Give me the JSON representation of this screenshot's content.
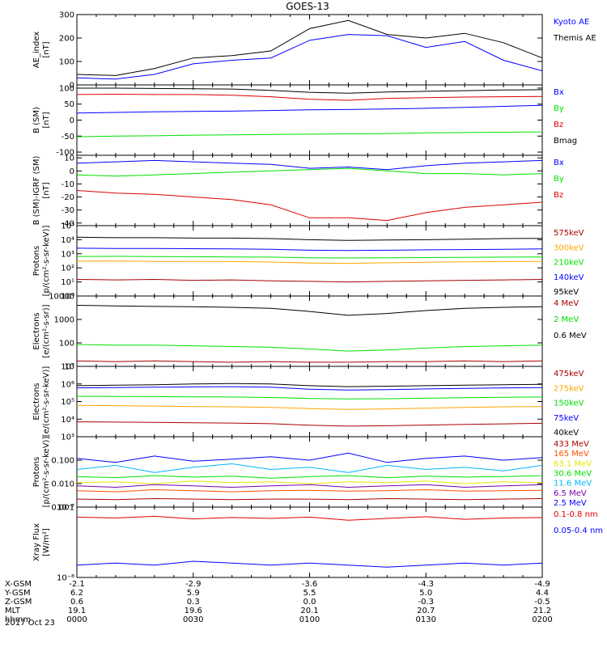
{
  "title": "GOES-13",
  "date_label": "2017 Oct 23",
  "orbit_table": {
    "row_labels": [
      "X-GSM",
      "Y-GSM",
      "Z-GSM",
      "MLT",
      "hhmm"
    ],
    "columns": [
      [
        "-2.1",
        "6.2",
        "0.6",
        "19.1",
        "0000"
      ],
      [
        "-2.9",
        "5.9",
        "0.3",
        "19.6",
        "0030"
      ],
      [
        "-3.6",
        "5.5",
        "0.0",
        "20.1",
        "0100"
      ],
      [
        "-4.3",
        "5.0",
        "-0.3",
        "20.7",
        "0130"
      ],
      [
        "-4.9",
        "4.4",
        "-0.5",
        "21.2",
        "0200"
      ]
    ]
  },
  "colors": {
    "black": "#000000",
    "blue": "#0000ff",
    "green": "#00e000",
    "red": "#dd0000",
    "darkred": "#aa0000",
    "orange": "#ffa500",
    "cyan": "#00b4ff",
    "yellow": "#e6e600",
    "orange_red": "#ff5000",
    "purple": "#7700aa"
  },
  "chart_data": [
    {
      "type": "line",
      "ylabel": "AE_index\n[nT]",
      "yscale": "linear",
      "ylim": [
        0,
        300
      ],
      "yticks": [
        0,
        100,
        200,
        300
      ],
      "ytick_labels": [
        "0",
        "100",
        "200",
        "300"
      ],
      "x": [
        0,
        10,
        20,
        30,
        40,
        50,
        60,
        70,
        80,
        90,
        100,
        110,
        120
      ],
      "series": [
        {
          "name": "Kyoto AE",
          "color": "#0000ff",
          "values": [
            30,
            25,
            45,
            90,
            105,
            115,
            190,
            215,
            210,
            160,
            185,
            105,
            60
          ]
        },
        {
          "name": "Themis AE",
          "color": "#000000",
          "values": [
            45,
            40,
            70,
            115,
            125,
            145,
            240,
            275,
            215,
            200,
            220,
            180,
            115
          ]
        }
      ]
    },
    {
      "type": "line",
      "ylabel": "B (SM)\n[nT]",
      "yscale": "linear",
      "ylim": [
        -110,
        110
      ],
      "yticks": [
        -100,
        -50,
        0,
        50,
        100
      ],
      "ytick_labels": [
        "-100",
        "-50",
        "0",
        "50",
        "100"
      ],
      "x": [
        0,
        10,
        20,
        30,
        40,
        50,
        60,
        70,
        80,
        90,
        100,
        110,
        120
      ],
      "series": [
        {
          "name": "Bx",
          "color": "#0000ff",
          "values": [
            22,
            24,
            26,
            27,
            28,
            30,
            32,
            33,
            35,
            37,
            40,
            43,
            46
          ]
        },
        {
          "name": "By",
          "color": "#00e000",
          "values": [
            -52,
            -50,
            -49,
            -47,
            -46,
            -45,
            -44,
            -43,
            -42,
            -40,
            -39,
            -38,
            -37
          ]
        },
        {
          "name": "Bz",
          "color": "#dd0000",
          "values": [
            80,
            81,
            80,
            80,
            78,
            73,
            65,
            62,
            68,
            70,
            72,
            73,
            74
          ]
        },
        {
          "name": "Bmag",
          "color": "#000000",
          "values": [
            100,
            100,
            99,
            98,
            97,
            93,
            87,
            84,
            88,
            90,
            92,
            94,
            95
          ]
        }
      ]
    },
    {
      "type": "line",
      "ylabel": "B (SM)-IGRF (SM)\n[nT]",
      "yscale": "linear",
      "ylim": [
        -42,
        12
      ],
      "yticks": [
        -40,
        -30,
        -20,
        -10,
        0,
        10
      ],
      "ytick_labels": [
        "-40",
        "-30",
        "-20",
        "-10",
        "0",
        "10"
      ],
      "x": [
        0,
        10,
        20,
        30,
        40,
        50,
        60,
        70,
        80,
        90,
        100,
        110,
        120
      ],
      "series": [
        {
          "name": "Bx",
          "color": "#0000ff",
          "values": [
            6,
            7,
            8,
            7,
            6,
            5,
            2,
            3,
            1,
            4,
            6,
            7,
            8
          ]
        },
        {
          "name": "By",
          "color": "#00e000",
          "values": [
            -3,
            -4,
            -3,
            -2,
            -1,
            0,
            1,
            2,
            0,
            -2,
            -2,
            -3,
            -2
          ]
        },
        {
          "name": "Bz",
          "color": "#dd0000",
          "values": [
            -15,
            -17,
            -18,
            -20,
            -22,
            -26,
            -36,
            -36,
            -38,
            -32,
            -28,
            -26,
            -24
          ]
        }
      ]
    },
    {
      "type": "line",
      "ylabel": "Protons\n[p/(cm²-s-sr-keV)]",
      "yscale": "log",
      "ylim": [
        1,
        100000
      ],
      "yticks": [
        1,
        10,
        100,
        1000,
        10000,
        100000
      ],
      "ytick_labels": [
        "10⁰",
        "10¹",
        "10²",
        "10³",
        "10⁴",
        "10⁵"
      ],
      "x": [
        0,
        10,
        20,
        30,
        40,
        50,
        60,
        70,
        80,
        90,
        100,
        110,
        120
      ],
      "series": [
        {
          "name": "575keV",
          "color": "#aa0000",
          "values": [
            15,
            14,
            15,
            13,
            14,
            12,
            11,
            10,
            11,
            12,
            13,
            14,
            15
          ]
        },
        {
          "name": "300keV",
          "color": "#ffa500",
          "values": [
            300,
            310,
            290,
            290,
            280,
            260,
            220,
            210,
            230,
            250,
            270,
            280,
            290
          ]
        },
        {
          "name": "210keV",
          "color": "#00e000",
          "values": [
            650,
            660,
            630,
            620,
            600,
            580,
            520,
            500,
            520,
            540,
            560,
            580,
            600
          ]
        },
        {
          "name": "140keV",
          "color": "#0000ff",
          "values": [
            2500,
            2400,
            2400,
            2300,
            2200,
            2100,
            1800,
            1700,
            1800,
            1900,
            2000,
            2100,
            2200
          ]
        },
        {
          "name": "95keV",
          "color": "#000000",
          "values": [
            15000,
            14000,
            14000,
            13000,
            13000,
            12000,
            10000,
            9000,
            9500,
            10000,
            11000,
            12000,
            12500
          ]
        }
      ]
    },
    {
      "type": "line",
      "ylabel": "Electrons\n[e/(cm²-s-sr)]",
      "yscale": "log",
      "ylim": [
        10,
        10000
      ],
      "yticks": [
        10,
        100,
        1000,
        10000
      ],
      "ytick_labels": [
        "10",
        "100",
        "1000",
        "10000"
      ],
      "x": [
        0,
        10,
        20,
        30,
        40,
        50,
        60,
        70,
        80,
        90,
        100,
        110,
        120
      ],
      "series": [
        {
          "name": "4 MeV",
          "color": "#aa0000",
          "values": [
            17,
            16,
            17,
            16,
            15,
            16,
            15,
            15,
            16,
            16,
            17,
            16,
            17
          ]
        },
        {
          "name": "2 MeV",
          "color": "#00e000",
          "values": [
            85,
            80,
            80,
            75,
            70,
            65,
            55,
            45,
            50,
            60,
            70,
            75,
            80
          ]
        },
        {
          "name": "0.6 MeV",
          "color": "#000000",
          "values": [
            4000,
            3800,
            3600,
            3500,
            3300,
            3000,
            2200,
            1500,
            1800,
            2400,
            3000,
            3300,
            3500
          ]
        }
      ]
    },
    {
      "type": "line",
      "ylabel": "Electrons\n[e/(cm²-s-sr-keV)]",
      "yscale": "log",
      "ylim": [
        1000,
        10000000
      ],
      "yticks": [
        1000,
        10000,
        100000,
        1000000,
        10000000
      ],
      "ytick_labels": [
        "10³",
        "10⁴",
        "10⁵",
        "10⁶",
        "10⁷"
      ],
      "x": [
        0,
        10,
        20,
        30,
        40,
        50,
        60,
        70,
        80,
        90,
        100,
        110,
        120
      ],
      "series": [
        {
          "name": "475keV",
          "color": "#aa0000",
          "values": [
            7000,
            6800,
            6500,
            6200,
            6000,
            5500,
            4500,
            4000,
            4200,
            4600,
            5000,
            5400,
            5800
          ]
        },
        {
          "name": "275keV",
          "color": "#ffa500",
          "values": [
            60000,
            58000,
            55000,
            52000,
            50000,
            46000,
            40000,
            36000,
            38000,
            42000,
            46000,
            50000,
            52000
          ]
        },
        {
          "name": "150keV",
          "color": "#00e000",
          "values": [
            200000,
            195000,
            190000,
            185000,
            180000,
            170000,
            150000,
            140000,
            145000,
            155000,
            165000,
            175000,
            180000
          ]
        },
        {
          "name": "75keV",
          "color": "#0000ff",
          "values": [
            600000,
            620000,
            650000,
            680000,
            700000,
            650000,
            500000,
            450000,
            480000,
            520000,
            560000,
            600000,
            620000
          ]
        },
        {
          "name": "40keV",
          "color": "#000000",
          "values": [
            800000,
            850000,
            900000,
            1000000,
            1050000,
            1000000,
            800000,
            700000,
            750000,
            800000,
            850000,
            900000,
            950000
          ]
        }
      ]
    },
    {
      "type": "line",
      "ylabel": "Protons\n[p/(cm²-s-sr-keV)]",
      "yscale": "log",
      "ylim": [
        0.001,
        1
      ],
      "yticks": [
        0.001,
        0.01,
        0.1
      ],
      "ytick_labels": [
        "0.001",
        "0.010",
        "0.100"
      ],
      "x": [
        0,
        10,
        20,
        30,
        40,
        50,
        60,
        70,
        80,
        90,
        100,
        110,
        120
      ],
      "series": [
        {
          "name": "433 MeV",
          "color": "#aa0000",
          "values": [
            0.0022,
            0.0021,
            0.0023,
            0.0022,
            0.0021,
            0.0022,
            0.0022,
            0.0021,
            0.0023,
            0.0022,
            0.0021,
            0.0022,
            0.0023
          ]
        },
        {
          "name": "165 MeV",
          "color": "#ff5000",
          "values": [
            0.005,
            0.0045,
            0.0055,
            0.005,
            0.0045,
            0.005,
            0.0052,
            0.0048,
            0.005,
            0.0055,
            0.0048,
            0.005,
            0.0052
          ]
        },
        {
          "name": "63.1 MeV",
          "color": "#e6e600",
          "values": [
            0.011,
            0.012,
            0.01,
            0.013,
            0.011,
            0.012,
            0.01,
            0.012,
            0.011,
            0.013,
            0.01,
            0.012,
            0.011
          ]
        },
        {
          "name": "30.6 MeV",
          "color": "#00e000",
          "values": [
            0.02,
            0.018,
            0.022,
            0.019,
            0.021,
            0.017,
            0.02,
            0.022,
            0.018,
            0.021,
            0.019,
            0.02,
            0.022
          ]
        },
        {
          "name": "11.6 MeV",
          "color": "#00b4ff",
          "values": [
            0.04,
            0.06,
            0.03,
            0.05,
            0.07,
            0.04,
            0.05,
            0.03,
            0.06,
            0.04,
            0.05,
            0.035,
            0.06
          ]
        },
        {
          "name": "6.5 MeV",
          "color": "#7700aa",
          "values": [
            0.008,
            0.007,
            0.009,
            0.008,
            0.007,
            0.008,
            0.009,
            0.007,
            0.008,
            0.009,
            0.007,
            0.008,
            0.009
          ]
        },
        {
          "name": "2.5 MeV",
          "color": "#0000ff",
          "values": [
            0.12,
            0.08,
            0.15,
            0.09,
            0.11,
            0.14,
            0.1,
            0.2,
            0.08,
            0.12,
            0.15,
            0.1,
            0.13
          ]
        }
      ]
    },
    {
      "type": "line",
      "ylabel": "Xray Flux\n[W/m²]",
      "yscale": "log",
      "ylim": [
        1e-08,
        1e-07
      ],
      "yticks": [
        1e-08,
        1e-07
      ],
      "ytick_labels": [
        "10⁻⁸",
        "10⁻⁷"
      ],
      "x": [
        0,
        10,
        20,
        30,
        40,
        50,
        60,
        70,
        80,
        90,
        100,
        110,
        120
      ],
      "series": [
        {
          "name": "0.1-0.8 nm",
          "color": "#dd0000",
          "values": [
            7.2e-08,
            7e-08,
            7.4e-08,
            6.8e-08,
            7.1e-08,
            6.9e-08,
            7.2e-08,
            6.5e-08,
            6.9e-08,
            7.3e-08,
            6.7e-08,
            7e-08,
            7.1e-08
          ]
        },
        {
          "name": "0.05-0.4 nm",
          "color": "#0000ff",
          "values": [
            1.5e-08,
            1.6e-08,
            1.5e-08,
            1.7e-08,
            1.6e-08,
            1.5e-08,
            1.6e-08,
            1.5e-08,
            1.4e-08,
            1.5e-08,
            1.6e-08,
            1.5e-08,
            1.6e-08
          ]
        }
      ]
    }
  ]
}
